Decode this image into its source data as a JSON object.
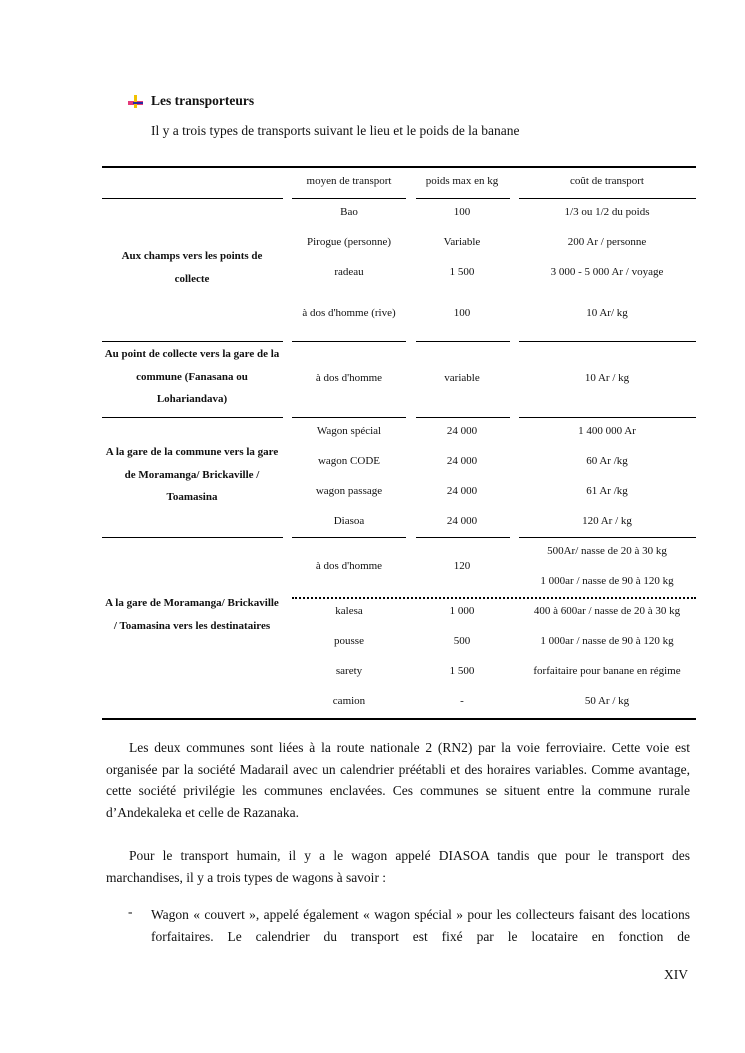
{
  "section": {
    "bullet_icon": "arrow-cross-bullet-icon",
    "title": "Les transporteurs",
    "intro": "Il y a trois types de transports suivant le lieu et le poids de la banane"
  },
  "table": {
    "headers": [
      "",
      "moyen de transport",
      "poids max en kg",
      "coût de transport"
    ],
    "groups": [
      {
        "label": "Aux champs vers les points de collecte",
        "rows": [
          [
            "Bao",
            "100",
            "1/3 ou 1/2 du poids"
          ],
          [
            "Pirogue (personne)",
            "Variable",
            "200 Ar / personne"
          ],
          [
            "radeau",
            "1 500",
            "3 000 - 5 000 Ar / voyage"
          ],
          [
            "à dos d'homme (rive)",
            "100",
            "10 Ar/ kg"
          ]
        ]
      },
      {
        "label": "Au point de collecte vers la gare de la commune (Fanasana ou Lohariandava)",
        "rows": [
          [
            "à dos d'homme",
            "variable",
            "10 Ar / kg"
          ]
        ]
      },
      {
        "label": "A la gare de la commune vers la gare de Moramanga/ Brickaville / Toamasina",
        "rows": [
          [
            "Wagon spécial",
            "24 000",
            "1 400 000 Ar"
          ],
          [
            "wagon CODE",
            "24 000",
            "60 Ar /kg"
          ],
          [
            "wagon passage",
            "24 000",
            "61 Ar /kg"
          ],
          [
            "Diasoa",
            "24 000",
            "120 Ar / kg"
          ]
        ]
      },
      {
        "label": "A la gare de Moramanga/ Brickaville / Toamasina vers les destinataires",
        "rows": [
          [
            "à dos d'homme",
            "120",
            "500Ar/ nasse de 20 à 30 kg",
            "1 000ar / nasse de 90 à 120 kg"
          ],
          [
            "kalesa",
            "1 000",
            "400 à 600ar / nasse de 20 à 30 kg"
          ],
          [
            "pousse",
            "500",
            "1 000ar / nasse de 90 à 120 kg"
          ],
          [
            "sarety",
            "1 500",
            "forfaitaire pour banane en régime"
          ],
          [
            "camion",
            "-",
            "50 Ar / kg"
          ]
        ]
      }
    ]
  },
  "paragraphs": [
    "Les deux communes sont liées à la route nationale 2 (RN2) par  la voie ferroviaire. Cette voie est organisée par la société Madarail avec un calendrier préétabli et des horaires variables. Comme avantage, cette société privilégie les communes enclavées. Ces communes se situent entre la commune rurale d’Andekaleka et celle de Razanaka.",
    "Pour le transport humain, il y a le wagon appelé DIASOA tandis que pour le transport des marchandises, il y a trois types de wagons à savoir :"
  ],
  "list": [
    {
      "marker": "-",
      "text": "Wagon « couvert », appelé également « wagon spécial » pour les collecteurs faisant des locations forfaitaires. Le calendrier du transport est fixé par le locataire en fonction de"
    }
  ],
  "page_number": "XIV"
}
